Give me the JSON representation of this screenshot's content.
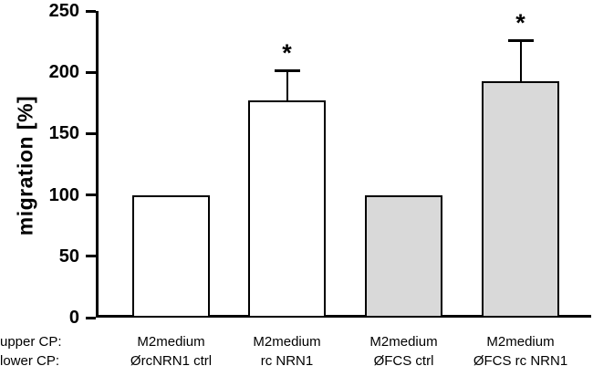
{
  "chart_data": {
    "type": "bar",
    "title": "",
    "xlabel": "",
    "ylabel": "migration [%]",
    "ylim": [
      0,
      250
    ],
    "yticks": [
      0,
      50,
      100,
      150,
      200,
      250
    ],
    "row_labels": [
      "upper CP:",
      "lower CP:"
    ],
    "categories_upper": [
      "M2medium",
      "M2medium",
      "M2medium",
      "M2medium"
    ],
    "categories_lower": [
      "ØrcNRN1 ctrl",
      "rc NRN1",
      "ØFCS ctrl",
      "ØFCS rc NRN1"
    ],
    "values": [
      100,
      177,
      100,
      193
    ],
    "error_upper": [
      0,
      25,
      0,
      33
    ],
    "significance": [
      "",
      "*",
      "",
      "*"
    ],
    "bar_fills": [
      "#ffffff",
      "#ffffff",
      "#d9d9d9",
      "#d9d9d9"
    ],
    "bar_border": "#000000",
    "axis_color": "#000000",
    "legend": "none",
    "grid": false
  }
}
